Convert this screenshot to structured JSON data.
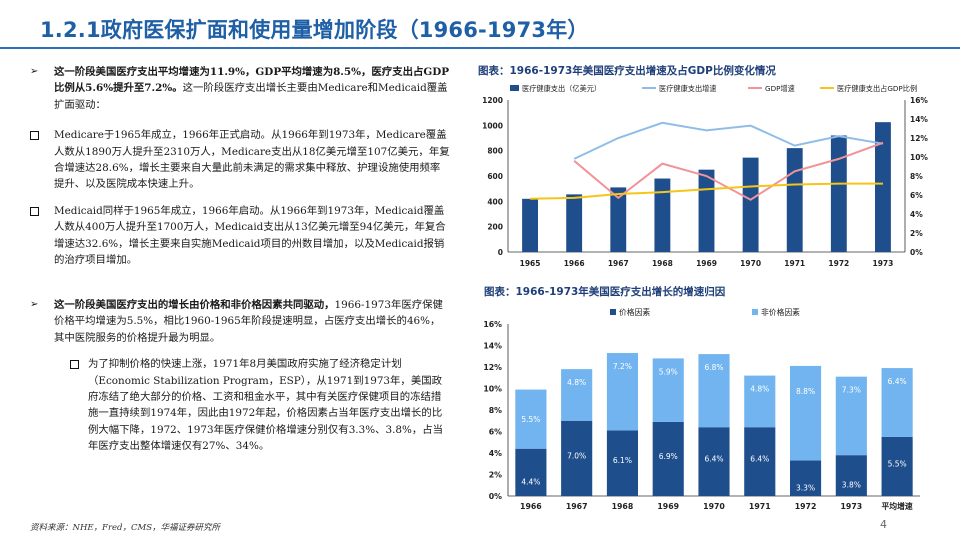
{
  "page": {
    "title": "1.2.1政府医保扩面和使用量增加阶段（1966-1973年）",
    "footer": "资料来源：NHE，Fred，CMS，华福证券研究所",
    "page_number": "4"
  },
  "text": {
    "p1": {
      "bold": "这一阶段美国医疗支出平均增速为11.9%，GDP平均增速为8.5%，医疗支出占GDP比例从5.6%提升至7.2%。",
      "rest": "这一阶段医疗支出增长主要由Medicare和Medicaid覆盖扩面驱动："
    },
    "p2": "Medicare于1965年成立，1966年正式启动。从1966年到1973年，Medicare覆盖人数从1890万人提升至2310万人，Medicare支出从18亿美元增至107亿美元，年复合增速达28.6%，增长主要来自大量此前未满足的需求集中释放、护理设施使用频率提升、以及医院成本快速上升。",
    "p3": "Medicaid同样于1965年成立，1966年启动。从1966年到1973年，Medicaid覆盖人数从400万人提升至1700万人，Medicaid支出从13亿美元增至94亿美元，年复合增速达32.6%，增长主要来自实施Medicaid项目的州数目增加，以及Medicaid报销的治疗项目增加。",
    "p4": {
      "bold": "这一阶段美国医疗支出的增长由价格和非价格因素共同驱动，",
      "rest": "1966-1973年医疗保健价格平均增速为5.5%，相比1960-1965年阶段提速明显，占医疗支出增长的46%，其中医院服务的价格提升最为明显。"
    },
    "p5": "为了抑制价格的快速上涨，1971年8月美国政府实施了经济稳定计划（Economic Stabilization Program，ESP），从1971到1973年，美国政府冻结了绝大部分的价格、工资和租金水平，其中有关医疗保健项目的冻结措施一直持续到1974年，因此由1972年起，价格因素占当年医疗支出增长的比例大幅下降，1972、1973年医疗保健价格增速分别仅有3.3%、3.8%，占当年医疗支出整体增速仅有27%、34%。"
  },
  "markers": {
    "arrow": "➢"
  },
  "chart1": {
    "title": "图表：1966-1973年美国医疗支出增速及占GDP比例变化情况",
    "legend": [
      "医疗健康支出（亿美元）",
      "医疗健康支出增速",
      "GDP增速",
      "医疗健康支出占GDP比例"
    ],
    "colors": {
      "bar": "#1f4e8c",
      "line1": "#8fbde8",
      "line2": "#f0949a",
      "line3": "#f5c518"
    }
  },
  "chart2": {
    "title": "图表：1966-1973年美国医疗支出增长的增速归因",
    "legend": [
      "价格因素",
      "非价格因素"
    ],
    "colors": {
      "price": "#1f4e8c",
      "nonprice": "#72b4ef"
    }
  },
  "chart_data": [
    {
      "type": "bar",
      "categories": [
        "1965",
        "1966",
        "1967",
        "1968",
        "1969",
        "1970",
        "1971",
        "1972",
        "1973"
      ],
      "series": [
        {
          "name": "医疗健康支出（亿美元）",
          "values": [
            420,
            455,
            510,
            580,
            650,
            745,
            820,
            920,
            1025
          ],
          "axis": "left"
        },
        {
          "name": "医疗健康支出增速",
          "values": [
            null,
            9.8,
            12.0,
            13.6,
            12.8,
            13.3,
            11.2,
            12.2,
            11.4
          ],
          "axis": "right",
          "type": "line"
        },
        {
          "name": "GDP增速",
          "values": [
            null,
            9.6,
            5.7,
            9.3,
            8.0,
            5.5,
            8.5,
            9.8,
            11.5
          ],
          "axis": "right",
          "type": "line"
        },
        {
          "name": "医疗健康支出占GDP比例",
          "values": [
            5.6,
            5.7,
            6.1,
            6.3,
            6.6,
            6.9,
            7.1,
            7.2,
            7.2
          ],
          "axis": "right",
          "type": "line"
        }
      ],
      "y_left": {
        "ticks": [
          "0",
          "200",
          "400",
          "600",
          "800",
          "1000",
          "1200"
        ],
        "range": [
          0,
          1200
        ]
      },
      "y_right": {
        "ticks": [
          "0%",
          "2%",
          "4%",
          "6%",
          "8%",
          "10%",
          "12%",
          "14%",
          "16%"
        ],
        "range": [
          0,
          16
        ]
      },
      "legend_position": "top"
    },
    {
      "type": "bar",
      "stacked": true,
      "categories": [
        "1966",
        "1967",
        "1968",
        "1969",
        "1970",
        "1971",
        "1972",
        "1973",
        "平均增速"
      ],
      "series": [
        {
          "name": "价格因素",
          "values": [
            4.4,
            7.0,
            6.1,
            6.9,
            6.4,
            6.4,
            3.3,
            3.8,
            5.5
          ],
          "labels": [
            "4.4%",
            "7.0%",
            "6.1%",
            "6.9%",
            "6.4%",
            "6.4%",
            "3.3%",
            "3.8%",
            "5.5%"
          ]
        },
        {
          "name": "非价格因素",
          "values": [
            5.5,
            4.8,
            7.2,
            5.9,
            6.8,
            4.8,
            8.8,
            7.3,
            6.4
          ],
          "labels": [
            "5.5%",
            "4.8%",
            "7.2%",
            "5.9%",
            "6.8%",
            "4.8%",
            "8.8%",
            "7.3%",
            "6.4%"
          ]
        }
      ],
      "y": {
        "ticks": [
          "0%",
          "2%",
          "4%",
          "6%",
          "8%",
          "10%",
          "12%",
          "14%",
          "16%"
        ],
        "range": [
          0,
          16
        ]
      },
      "legend_position": "top"
    }
  ]
}
